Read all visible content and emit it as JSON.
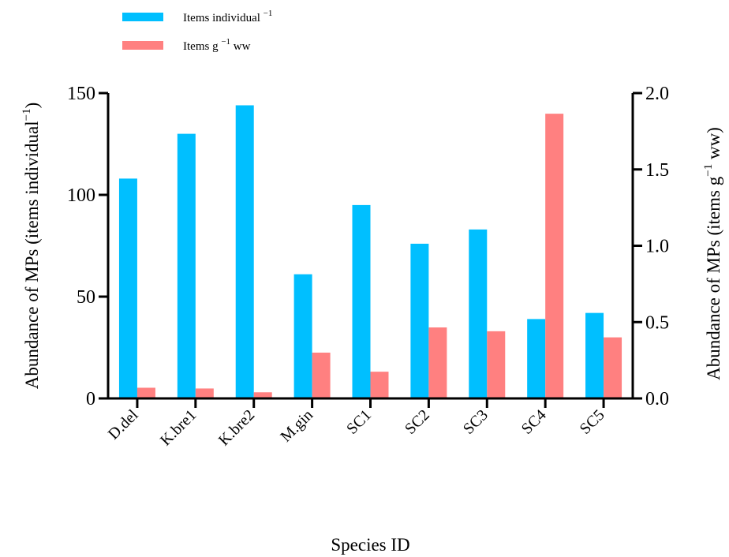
{
  "chart_data": {
    "type": "bar",
    "categories": [
      "D.del",
      "K.bre1",
      "K.bre2",
      "M.gin",
      "SC1",
      "SC2",
      "SC3",
      "SC4",
      "SC5"
    ],
    "series": [
      {
        "name": "Items individual",
        "name_sup": "−1",
        "axis": "left",
        "color": "#00BFFF",
        "values": [
          108,
          130,
          144,
          61,
          95,
          76,
          83,
          39,
          42
        ]
      },
      {
        "name": "Items g",
        "name_sup": "−1",
        "name_suffix": " ww",
        "axis": "right",
        "color": "#FF8080",
        "values": [
          0.07,
          0.065,
          0.04,
          0.3,
          0.175,
          0.465,
          0.44,
          1.865,
          0.4
        ]
      }
    ],
    "xlabel": "Species ID",
    "ylabel_left": {
      "text": "Abundance of MPs (items individual",
      "sup": "−1",
      "close": ")"
    },
    "ylabel_right": {
      "text": "Abundance of MPs (items g",
      "sup": "−1",
      "close": " ww)"
    },
    "ylim_left": [
      0,
      150
    ],
    "yticks_left": [
      "0",
      "50",
      "100",
      "150"
    ],
    "ylim_right": [
      0,
      2.0
    ],
    "yticks_right": [
      "0.0",
      "0.5",
      "1.0",
      "1.5",
      "2.0"
    ],
    "grid": false,
    "legend_position": "top-left"
  }
}
